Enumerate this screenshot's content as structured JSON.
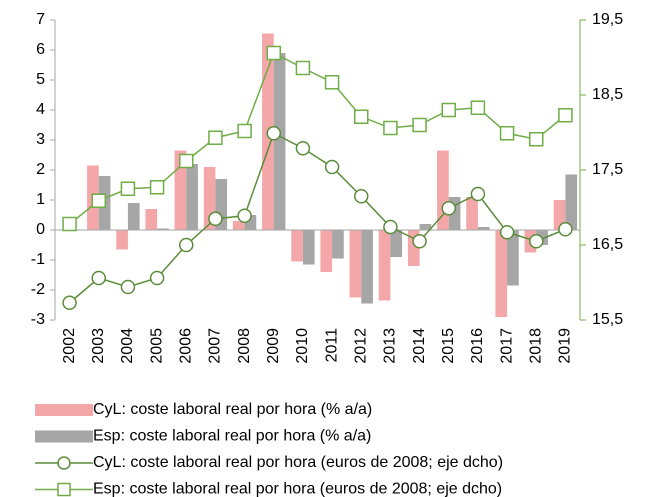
{
  "chart_data": {
    "type": "bar_line",
    "categories": [
      "2002",
      "2003",
      "2004",
      "2005",
      "2006",
      "2007",
      "2008",
      "2009",
      "2010",
      "2011",
      "2012",
      "2013",
      "2014",
      "2015",
      "2016",
      "2017",
      "2018",
      "2019"
    ],
    "series": [
      {
        "name": "CyL: coste laboral real por hora (% a/a)",
        "type": "bar",
        "color": "#f4a7a9",
        "values": [
          null,
          2.15,
          -0.65,
          0.7,
          2.65,
          2.1,
          0.3,
          6.55,
          -1.05,
          -1.4,
          -2.25,
          -2.35,
          -1.2,
          2.65,
          1.1,
          -2.9,
          -0.75,
          1.0
        ]
      },
      {
        "name": "Esp: coste laboral real por hora (% a/a)",
        "type": "bar",
        "color": "#a6a6a6",
        "values": [
          null,
          1.8,
          0.9,
          0.05,
          2.2,
          1.7,
          0.5,
          5.9,
          -1.15,
          -0.95,
          -2.45,
          -0.9,
          0.2,
          1.1,
          0.1,
          -1.85,
          -0.5,
          1.85
        ]
      },
      {
        "name": "CyL: coste laboral real por hora (euros de 2008; eje dcho)",
        "type": "line",
        "marker": "circle",
        "axis": "y2",
        "color": "#5b8c3a",
        "values": [
          15.73,
          16.06,
          15.94,
          16.06,
          16.5,
          16.85,
          16.89,
          17.99,
          17.79,
          17.54,
          17.15,
          16.74,
          16.55,
          16.99,
          17.18,
          16.67,
          16.55,
          16.71
        ]
      },
      {
        "name": "Esp: coste laboral real por hora (euros de 2008; eje dcho)",
        "type": "line",
        "marker": "square",
        "axis": "y2",
        "color": "#70ad47",
        "values": [
          16.78,
          17.09,
          17.25,
          17.27,
          17.62,
          17.93,
          18.02,
          19.06,
          18.86,
          18.67,
          18.21,
          18.06,
          18.1,
          18.3,
          18.33,
          17.99,
          17.91,
          18.23
        ]
      }
    ],
    "ylim": [
      -3,
      7
    ],
    "yticks": [
      -3,
      -2,
      -1,
      0,
      1,
      2,
      3,
      4,
      5,
      6,
      7
    ],
    "y2lim": [
      15.5,
      19.5
    ],
    "y2ticks": [
      {
        "value": 15.5,
        "label": "15,5"
      },
      {
        "value": 16.5,
        "label": "16,5"
      },
      {
        "value": 17.5,
        "label": "17,5"
      },
      {
        "value": 18.5,
        "label": "18,5"
      },
      {
        "value": 19.5,
        "label": "19,5"
      }
    ],
    "y2color": "#70ad47",
    "legend": "bottom"
  }
}
